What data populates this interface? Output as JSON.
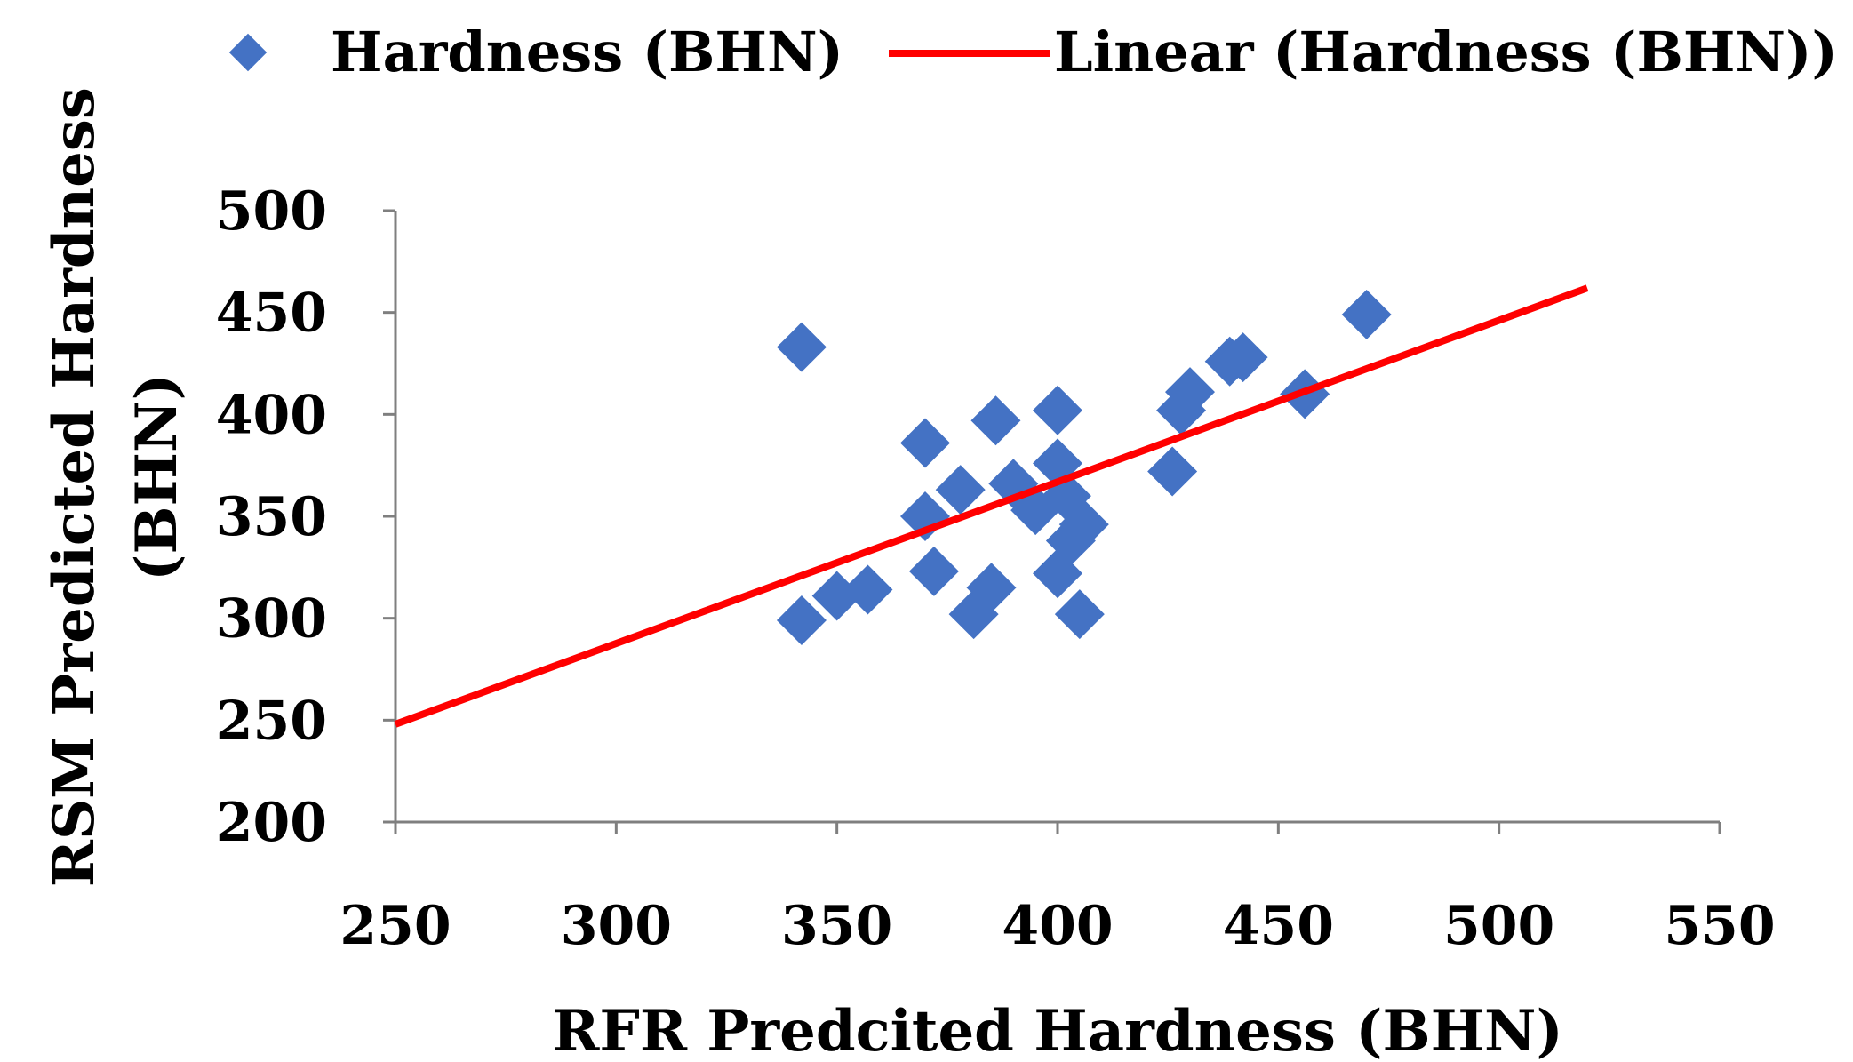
{
  "chart_data": {
    "type": "scatter",
    "xlabel": "RFR Predcited Hardness (BHN)",
    "ylabel_lines": [
      "RSM  Predicted Hardness",
      "(BHN)"
    ],
    "xlim": [
      250,
      550
    ],
    "ylim": [
      200,
      500
    ],
    "x_ticks": [
      250,
      300,
      350,
      400,
      450,
      500,
      550
    ],
    "y_ticks": [
      200,
      250,
      300,
      350,
      400,
      450,
      500
    ],
    "grid": false,
    "legend_position": "top",
    "series": [
      {
        "name": "Hardness (BHN)",
        "marker": "diamond",
        "color": "#4472C4",
        "points": [
          [
            342,
            433
          ],
          [
            342,
            299
          ],
          [
            350,
            311
          ],
          [
            357,
            314
          ],
          [
            370,
            350
          ],
          [
            370,
            386
          ],
          [
            372,
            323
          ],
          [
            378,
            363
          ],
          [
            381,
            302
          ],
          [
            385,
            315
          ],
          [
            386,
            397
          ],
          [
            390,
            366
          ],
          [
            395,
            353
          ],
          [
            400,
            402
          ],
          [
            400,
            376
          ],
          [
            400,
            322
          ],
          [
            402,
            360
          ],
          [
            403,
            338
          ],
          [
            406,
            346
          ],
          [
            405,
            302
          ],
          [
            426,
            372
          ],
          [
            428,
            402
          ],
          [
            430,
            411
          ],
          [
            439,
            426
          ],
          [
            442,
            428
          ],
          [
            456,
            410
          ],
          [
            470,
            449
          ]
        ]
      }
    ],
    "trendline": {
      "name": "Linear (Hardness (BHN))",
      "type": "linear",
      "color": "#FF0000",
      "points": [
        [
          250,
          248
        ],
        [
          520,
          462
        ]
      ]
    }
  }
}
